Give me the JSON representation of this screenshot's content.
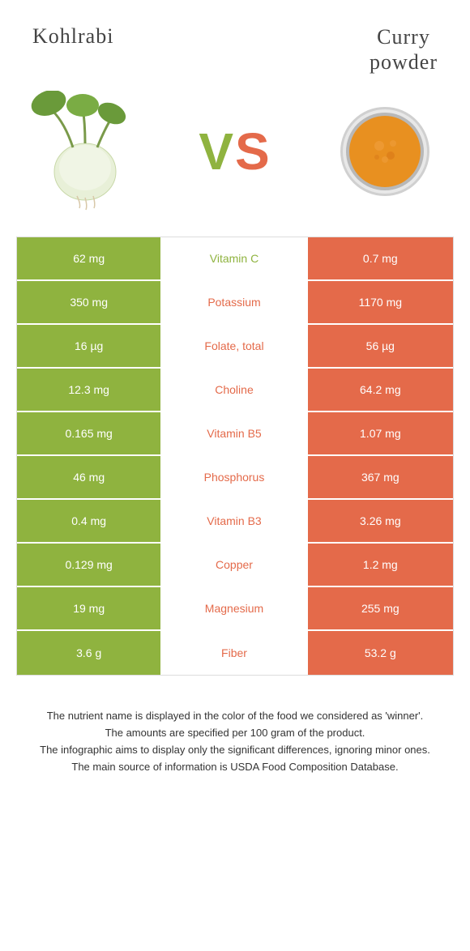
{
  "colors": {
    "left": "#8fb33f",
    "right": "#e46a4a",
    "background": "#ffffff"
  },
  "food_left": {
    "name": "Kohlrabi"
  },
  "food_right": {
    "name": "Curry powder"
  },
  "vs": {
    "v": "V",
    "s": "S"
  },
  "rows": [
    {
      "left": "62 mg",
      "label": "Vitamin C",
      "right": "0.7 mg",
      "winner": "left"
    },
    {
      "left": "350 mg",
      "label": "Potassium",
      "right": "1170 mg",
      "winner": "right"
    },
    {
      "left": "16 µg",
      "label": "Folate, total",
      "right": "56 µg",
      "winner": "right"
    },
    {
      "left": "12.3 mg",
      "label": "Choline",
      "right": "64.2 mg",
      "winner": "right"
    },
    {
      "left": "0.165 mg",
      "label": "Vitamin B5",
      "right": "1.07 mg",
      "winner": "right"
    },
    {
      "left": "46 mg",
      "label": "Phosphorus",
      "right": "367 mg",
      "winner": "right"
    },
    {
      "left": "0.4 mg",
      "label": "Vitamin B3",
      "right": "3.26 mg",
      "winner": "right"
    },
    {
      "left": "0.129 mg",
      "label": "Copper",
      "right": "1.2 mg",
      "winner": "right"
    },
    {
      "left": "19 mg",
      "label": "Magnesium",
      "right": "255 mg",
      "winner": "right"
    },
    {
      "left": "3.6 g",
      "label": "Fiber",
      "right": "53.2 g",
      "winner": "right"
    }
  ],
  "footer": {
    "line1": "The nutrient name is displayed in the color of the food we considered as 'winner'.",
    "line2": "The amounts are specified per 100 gram of the product.",
    "line3": "The infographic aims to display only the significant differences, ignoring minor ones.",
    "line4": "The main source of information is USDA Food Composition Database."
  }
}
